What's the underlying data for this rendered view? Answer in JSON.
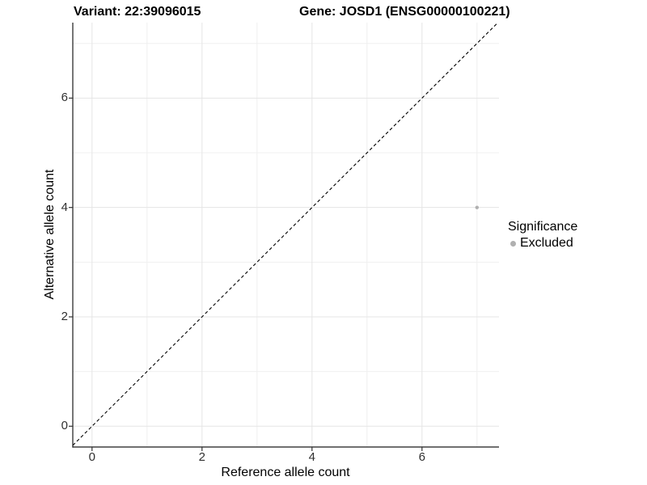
{
  "chart_data": {
    "type": "scatter",
    "title_left": "Variant: 22:39096015",
    "title_right": "Gene: JOSD1 (ENSG00000100221)",
    "xlabel": "Reference allele count",
    "ylabel": "Alternative allele count",
    "xlim": [
      -0.35,
      7.4
    ],
    "ylim": [
      -0.38,
      7.38
    ],
    "x_ticks": [
      0,
      2,
      4,
      6
    ],
    "y_ticks": [
      0,
      2,
      4,
      6
    ],
    "grid_major": [
      0,
      2,
      4,
      6
    ],
    "grid_minor": [
      1,
      3,
      5,
      7
    ],
    "grid_on": true,
    "reference_line": {
      "kind": "identity y=x",
      "style": "dashed",
      "color": "#000000"
    },
    "series": [
      {
        "name": "Excluded",
        "color": "#b0b0b0",
        "points": [
          {
            "x": 7,
            "y": 4
          }
        ]
      }
    ],
    "colors": {
      "grid_major": "#e5e5e5",
      "grid_minor": "#f0f0f0",
      "axis_line": "#1a1a1a",
      "tick_mark": "#333333",
      "point": "#b0b0b0"
    }
  },
  "legend": {
    "title": "Significance",
    "position": "right",
    "items": [
      {
        "label": "Excluded",
        "color": "#b0b0b0"
      }
    ]
  }
}
